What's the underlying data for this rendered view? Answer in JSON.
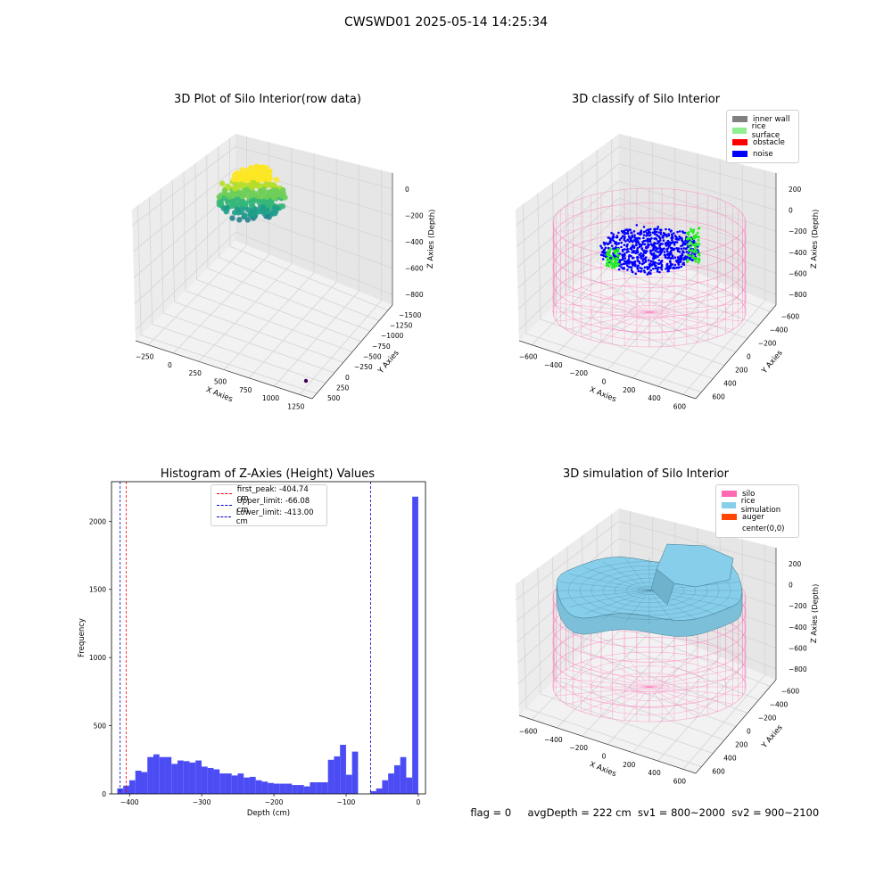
{
  "page": {
    "title": "CWSWD01 2025-05-14 14:25:34",
    "footer": {
      "flag": "flag = 0",
      "avg": "avgDepth = 222 cm",
      "sv1": "sv1 = 800~2000",
      "sv2": "sv2 = 900~2100"
    }
  },
  "chart_data": [
    {
      "type": "scatter",
      "title": "3D Plot of Silo Interior(row data)",
      "xlabel": "X Axies",
      "ylabel": "Y Axies",
      "zlabel": "Z Axies (Depth)",
      "xticks": [
        "−250",
        "0",
        "250",
        "500",
        "750",
        "1000",
        "1250"
      ],
      "yticks": [
        "500",
        "250",
        "0",
        "−250",
        "−500",
        "−750",
        "−1000",
        "−1250",
        "−1500"
      ],
      "zticks": [
        "0",
        "−200",
        "−400",
        "−600",
        "−800"
      ],
      "colormap": "viridis",
      "outlier_point": {
        "x": 1320,
        "y": -1350,
        "z": -900,
        "color": "#440154"
      }
    },
    {
      "type": "scatter",
      "title": "3D classify of Silo Interior",
      "xlabel": "X Axies",
      "ylabel": "Y Axies",
      "zlabel": "Z Axies (Depth)",
      "xticks": [
        "−600",
        "−400",
        "−200",
        "0",
        "200",
        "400",
        "600"
      ],
      "yticks": [
        "600",
        "400",
        "200",
        "0",
        "−200",
        "−400",
        "−600"
      ],
      "zticks": [
        "200",
        "0",
        "−200",
        "−400",
        "−600",
        "−800"
      ],
      "legend": [
        {
          "label": "inner wall",
          "color": "#808080"
        },
        {
          "label": "rice surface",
          "color": "#90ee90"
        },
        {
          "label": "obstacle",
          "color": "#ff0000"
        },
        {
          "label": "noise",
          "color": "#0000ff"
        }
      ]
    },
    {
      "type": "bar",
      "title": "Histogram of Z-Axies (Height) Values",
      "xlabel": "Depth (cm)",
      "ylabel": "Frequency",
      "xlim": [
        -425,
        10
      ],
      "ylim": [
        0,
        2290
      ],
      "xticks": [
        -400,
        -300,
        -200,
        -100,
        0
      ],
      "yticks": [
        0,
        500,
        1000,
        1500,
        2000
      ],
      "bin_start": -417,
      "bin_width": 8.34,
      "values": [
        40,
        60,
        100,
        170,
        160,
        270,
        290,
        270,
        270,
        220,
        245,
        240,
        230,
        245,
        200,
        190,
        180,
        150,
        150,
        135,
        150,
        120,
        125,
        100,
        90,
        80,
        75,
        75,
        75,
        65,
        65,
        55,
        85,
        85,
        85,
        250,
        275,
        360,
        140,
        310,
        0,
        0,
        20,
        40,
        100,
        150,
        210,
        270,
        120,
        2180
      ],
      "color": "#4c4cf5",
      "vlines": [
        {
          "label": "first_peak: -404.74 cm",
          "x": -404.74,
          "color": "#ff0000"
        },
        {
          "label": "Upper_limit: -66.08 cm",
          "x": -66.08,
          "color": "#0000cc"
        },
        {
          "label": "Lower_limit: -413.00 cm",
          "x": -413.0,
          "color": "#0000cc"
        }
      ]
    },
    {
      "type": "area",
      "title": "3D simulation of Silo Interior",
      "xlabel": "X Axies",
      "ylabel": "Y Axies",
      "zlabel": "Z Axies (Depth)",
      "xticks": [
        "−600",
        "−400",
        "−200",
        "0",
        "200",
        "400",
        "600"
      ],
      "yticks": [
        "600",
        "400",
        "200",
        "0",
        "−200",
        "−400",
        "−600"
      ],
      "zticks": [
        "200",
        "0",
        "−200",
        "−400",
        "−600",
        "−800"
      ],
      "legend": [
        {
          "label": "silo",
          "color": "#ff69b4"
        },
        {
          "label": "rice simulation",
          "color": "#87ceeb"
        },
        {
          "label": "auger",
          "color": "#ff4500"
        },
        {
          "label": "center(0,0)",
          "color": "#ffffff"
        }
      ]
    }
  ]
}
